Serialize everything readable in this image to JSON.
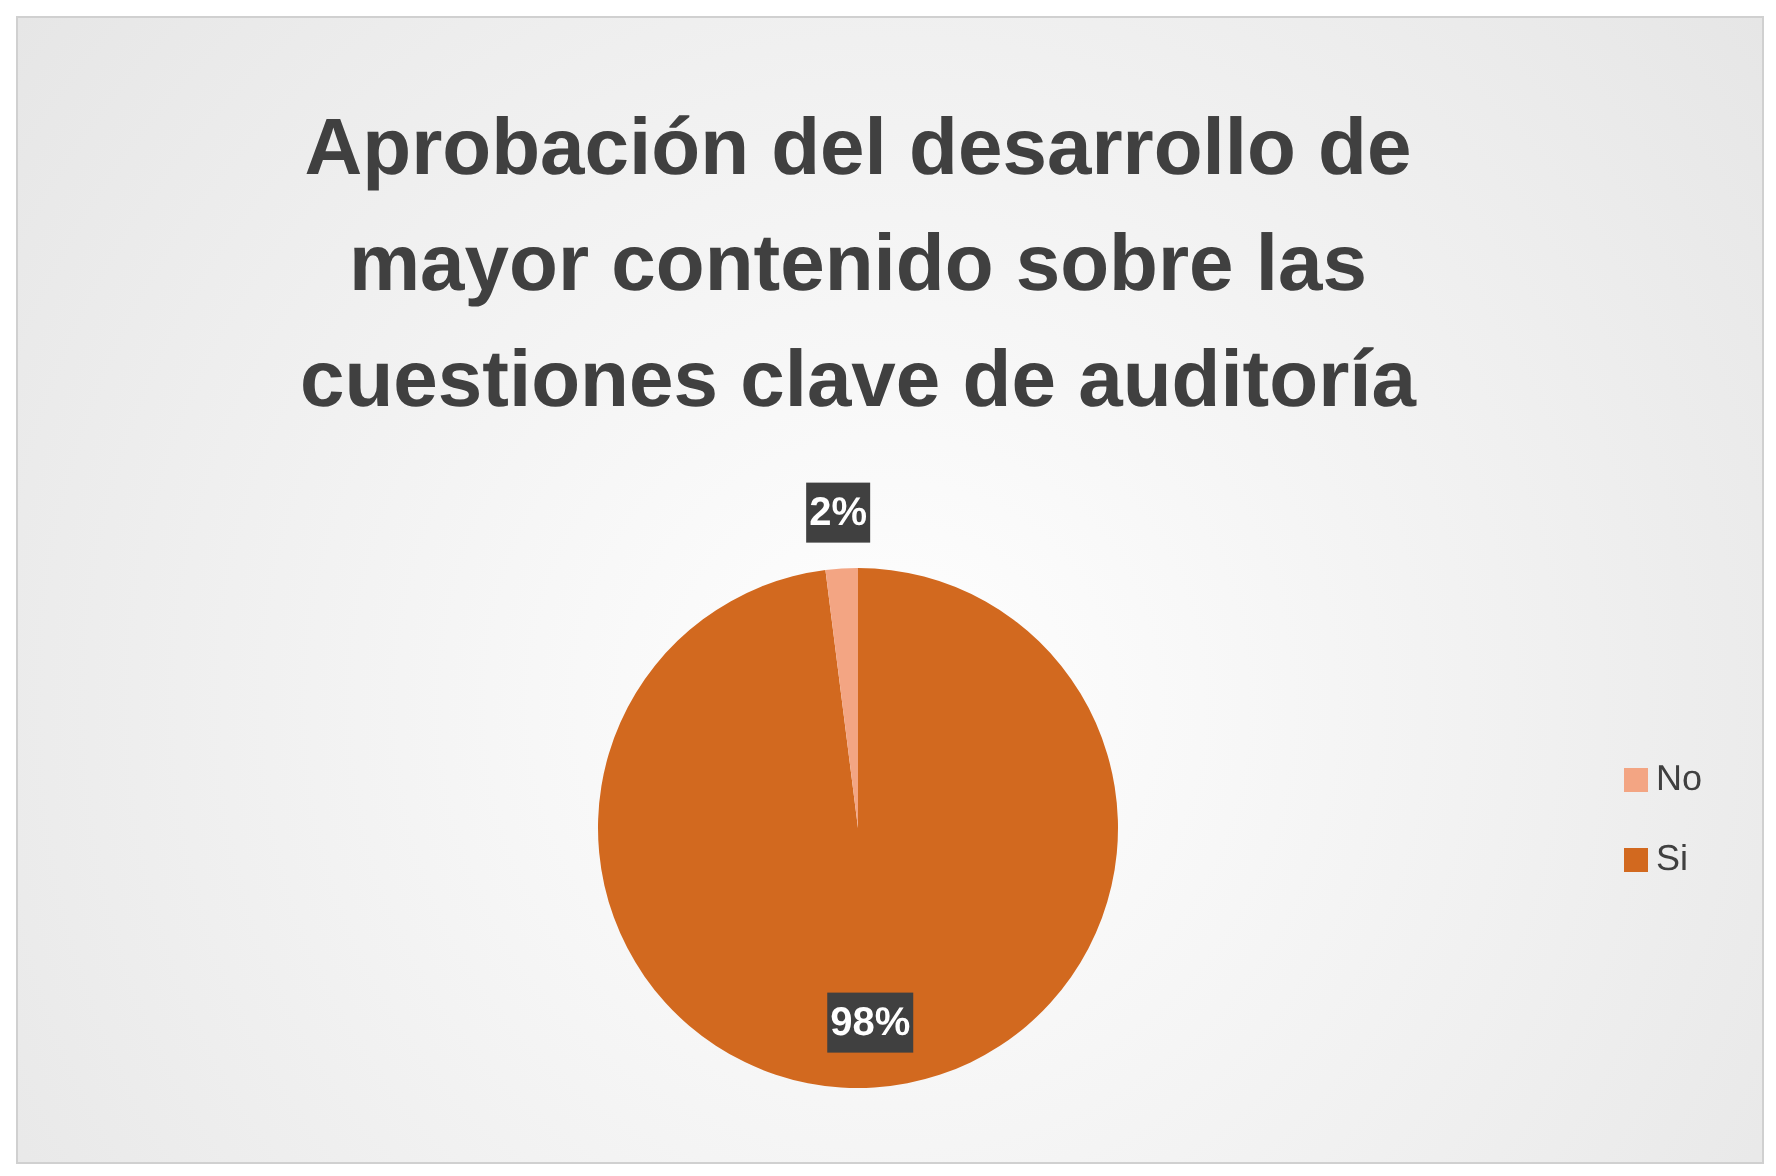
{
  "chart_data": {
    "type": "pie",
    "title": "Aprobación del desarrollo de mayor contenido sobre las cuestiones clave de auditoría",
    "categories": [
      "Si",
      "No"
    ],
    "values": [
      98,
      2
    ],
    "colors": [
      "#d2691f",
      "#f3a583"
    ],
    "value_labels": [
      "98%",
      "2%"
    ],
    "legend": "right"
  }
}
